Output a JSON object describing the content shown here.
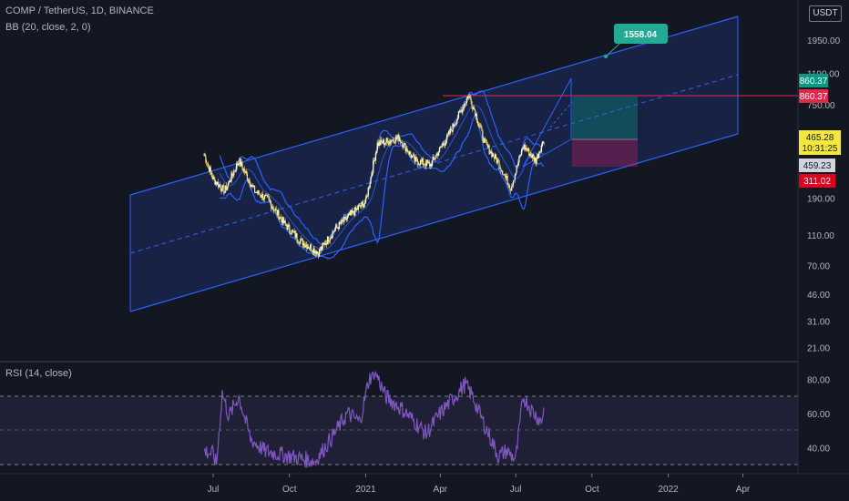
{
  "header": {
    "symbol_line": "COMP / TetherUS, 1D, BINANCE",
    "indicator_line": "BB (20, close, 2, 0)"
  },
  "rsi_panel": {
    "label": "RSI (14, close)"
  },
  "currency_button": "USDT",
  "colors": {
    "background": "#131722",
    "channel_fill": "#1c2a5e",
    "channel_line": "#2962ff",
    "candle": "#f5e06a",
    "bollinger": "#2962ff",
    "rsi_line": "#7e57c2",
    "horizontal_line": "#e0284a",
    "target_green": "#089981",
    "stop_red": "#e91e63",
    "callout": "#22ab94"
  },
  "chart_data": [
    {
      "type": "line",
      "title": "COMP / TetherUS, 1D, BINANCE",
      "y_scale": "log",
      "y_ticks": [
        "1950.00",
        "1190.00",
        "750.00",
        "460.00",
        "190.00",
        "110.00",
        "70.00",
        "46.00",
        "31.00",
        "21.00"
      ],
      "x_ticks": [
        "Jul",
        "Oct",
        "2021",
        "Apr",
        "Jul",
        "Oct",
        "2022",
        "Apr"
      ],
      "price_path": {
        "x": [
          "2020-06-20",
          "2020-07-01",
          "2020-07-15",
          "2020-08-01",
          "2020-08-20",
          "2020-09-05",
          "2020-09-25",
          "2020-10-15",
          "2020-11-05",
          "2020-11-25",
          "2020-12-15",
          "2021-01-01",
          "2021-01-15",
          "2021-02-10",
          "2021-03-01",
          "2021-03-20",
          "2021-04-10",
          "2021-05-05",
          "2021-05-12",
          "2021-05-25",
          "2021-06-10",
          "2021-06-25",
          "2021-07-10",
          "2021-07-25",
          "2021-08-05"
        ],
        "y": [
          360,
          250,
          210,
          330,
          210,
          185,
          130,
          100,
          85,
          120,
          150,
          180,
          420,
          460,
          330,
          310,
          470,
          860,
          700,
          420,
          320,
          220,
          410,
          330,
          465
        ]
      },
      "annotations": {
        "callout_value": "1558.04",
        "horizontal_line_value": "860.37",
        "last_price": "465.28",
        "countdown": "10:31:25",
        "bb_basis_value": "459.23",
        "bb_lower_value": "311.02",
        "upper_tag_value": "860.37"
      },
      "series": [
        {
          "name": "BB (20, close, 2, 0)"
        }
      ]
    },
    {
      "type": "line",
      "title": "RSI (14, close)",
      "y_ticks": [
        "80.00",
        "60.00",
        "40.00"
      ],
      "ylim": [
        25,
        85
      ],
      "bands": [
        70,
        50,
        30
      ],
      "rsi": {
        "x": [
          "2020-06-20",
          "2020-07-01",
          "2020-07-05",
          "2020-07-12",
          "2020-07-20",
          "2020-08-01",
          "2020-08-15",
          "2020-09-01",
          "2020-09-20",
          "2020-10-10",
          "2020-11-01",
          "2020-11-20",
          "2020-12-10",
          "2020-12-25",
          "2021-01-05",
          "2021-01-12",
          "2021-01-25",
          "2021-02-15",
          "2021-03-01",
          "2021-03-15",
          "2021-04-01",
          "2021-04-15",
          "2021-05-01",
          "2021-05-10",
          "2021-05-20",
          "2021-06-01",
          "2021-06-10",
          "2021-06-20",
          "2021-07-01",
          "2021-07-10",
          "2021-07-20",
          "2021-08-01",
          "2021-08-05"
        ],
        "y": [
          38,
          36,
          30,
          72,
          58,
          70,
          45,
          38,
          36,
          34,
          32,
          45,
          60,
          55,
          80,
          85,
          70,
          62,
          55,
          48,
          60,
          68,
          77,
          70,
          58,
          45,
          35,
          38,
          33,
          70,
          62,
          55,
          67
        ]
      }
    }
  ]
}
